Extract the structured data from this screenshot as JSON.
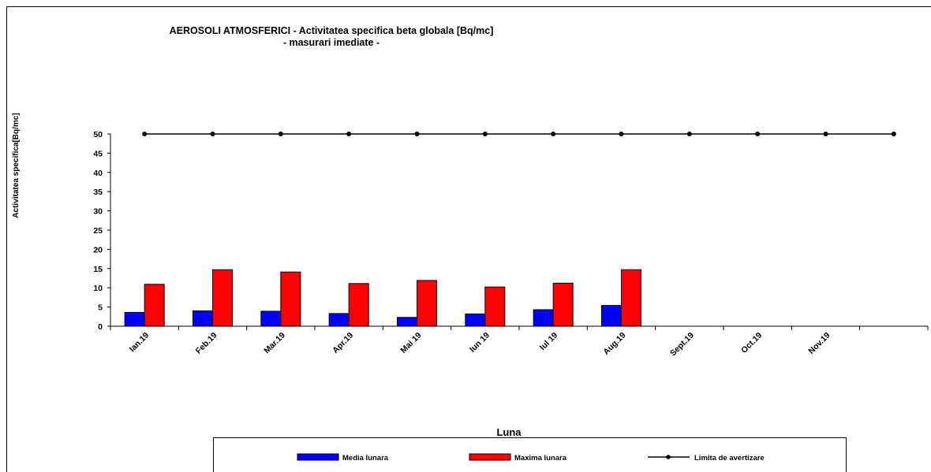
{
  "chart_data": {
    "type": "bar",
    "title": "AEROSOLI  ATMOSFERICI - Activitatea specifica  beta globala [Bq/mc]",
    "subtitle": "- masurari imediate -",
    "xlabel": "Luna",
    "ylabel": "Activitatea specifica[Bq/mc]",
    "ylim": [
      0,
      50
    ],
    "yticks": [
      0,
      5,
      10,
      15,
      20,
      25,
      30,
      35,
      40,
      45,
      50
    ],
    "categories": [
      "Ian.19",
      "Feb.19",
      "Mar.19",
      "Apr.19",
      "Mai 19",
      "Iun 19",
      "Iul 19",
      "Aug.19",
      "Sept.19",
      "Oct.19",
      "Nov.19",
      ""
    ],
    "series": [
      {
        "name": "Media lunara",
        "type": "bar",
        "color": "#0000ff",
        "values": [
          3.6,
          4.0,
          3.9,
          3.3,
          2.3,
          3.2,
          4.3,
          5.4,
          null,
          null,
          null,
          null
        ]
      },
      {
        "name": "Maxima lunara",
        "type": "bar",
        "color": "#ff0000",
        "values": [
          10.9,
          14.7,
          14.1,
          11.1,
          11.9,
          10.2,
          11.2,
          14.7,
          null,
          null,
          null,
          null
        ]
      },
      {
        "name": "Limita de avertizare",
        "type": "line",
        "color": "#000000",
        "values": [
          50,
          50,
          50,
          50,
          50,
          50,
          50,
          50,
          50,
          50,
          50,
          50
        ]
      }
    ],
    "grid": false,
    "legend": "bottom"
  }
}
